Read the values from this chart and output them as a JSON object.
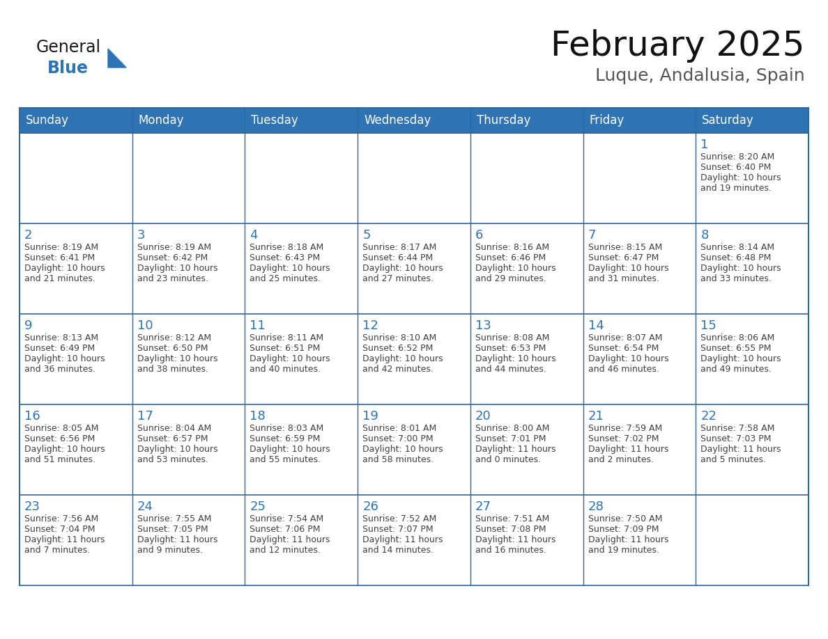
{
  "title": "February 2025",
  "subtitle": "Luque, Andalusia, Spain",
  "header_color": "#2E74B5",
  "header_text_color": "#FFFFFF",
  "cell_border_color": "#336699",
  "day_number_color": "#2E74B5",
  "info_text_color": "#404040",
  "background_color": "#FFFFFF",
  "days_of_week": [
    "Sunday",
    "Monday",
    "Tuesday",
    "Wednesday",
    "Thursday",
    "Friday",
    "Saturday"
  ],
  "calendar_data": [
    [
      null,
      null,
      null,
      null,
      null,
      null,
      {
        "day": 1,
        "sunrise": "8:20 AM",
        "sunset": "6:40 PM",
        "daylight_line1": "Daylight: 10 hours",
        "daylight_line2": "and 19 minutes."
      }
    ],
    [
      {
        "day": 2,
        "sunrise": "8:19 AM",
        "sunset": "6:41 PM",
        "daylight_line1": "Daylight: 10 hours",
        "daylight_line2": "and 21 minutes."
      },
      {
        "day": 3,
        "sunrise": "8:19 AM",
        "sunset": "6:42 PM",
        "daylight_line1": "Daylight: 10 hours",
        "daylight_line2": "and 23 minutes."
      },
      {
        "day": 4,
        "sunrise": "8:18 AM",
        "sunset": "6:43 PM",
        "daylight_line1": "Daylight: 10 hours",
        "daylight_line2": "and 25 minutes."
      },
      {
        "day": 5,
        "sunrise": "8:17 AM",
        "sunset": "6:44 PM",
        "daylight_line1": "Daylight: 10 hours",
        "daylight_line2": "and 27 minutes."
      },
      {
        "day": 6,
        "sunrise": "8:16 AM",
        "sunset": "6:46 PM",
        "daylight_line1": "Daylight: 10 hours",
        "daylight_line2": "and 29 minutes."
      },
      {
        "day": 7,
        "sunrise": "8:15 AM",
        "sunset": "6:47 PM",
        "daylight_line1": "Daylight: 10 hours",
        "daylight_line2": "and 31 minutes."
      },
      {
        "day": 8,
        "sunrise": "8:14 AM",
        "sunset": "6:48 PM",
        "daylight_line1": "Daylight: 10 hours",
        "daylight_line2": "and 33 minutes."
      }
    ],
    [
      {
        "day": 9,
        "sunrise": "8:13 AM",
        "sunset": "6:49 PM",
        "daylight_line1": "Daylight: 10 hours",
        "daylight_line2": "and 36 minutes."
      },
      {
        "day": 10,
        "sunrise": "8:12 AM",
        "sunset": "6:50 PM",
        "daylight_line1": "Daylight: 10 hours",
        "daylight_line2": "and 38 minutes."
      },
      {
        "day": 11,
        "sunrise": "8:11 AM",
        "sunset": "6:51 PM",
        "daylight_line1": "Daylight: 10 hours",
        "daylight_line2": "and 40 minutes."
      },
      {
        "day": 12,
        "sunrise": "8:10 AM",
        "sunset": "6:52 PM",
        "daylight_line1": "Daylight: 10 hours",
        "daylight_line2": "and 42 minutes."
      },
      {
        "day": 13,
        "sunrise": "8:08 AM",
        "sunset": "6:53 PM",
        "daylight_line1": "Daylight: 10 hours",
        "daylight_line2": "and 44 minutes."
      },
      {
        "day": 14,
        "sunrise": "8:07 AM",
        "sunset": "6:54 PM",
        "daylight_line1": "Daylight: 10 hours",
        "daylight_line2": "and 46 minutes."
      },
      {
        "day": 15,
        "sunrise": "8:06 AM",
        "sunset": "6:55 PM",
        "daylight_line1": "Daylight: 10 hours",
        "daylight_line2": "and 49 minutes."
      }
    ],
    [
      {
        "day": 16,
        "sunrise": "8:05 AM",
        "sunset": "6:56 PM",
        "daylight_line1": "Daylight: 10 hours",
        "daylight_line2": "and 51 minutes."
      },
      {
        "day": 17,
        "sunrise": "8:04 AM",
        "sunset": "6:57 PM",
        "daylight_line1": "Daylight: 10 hours",
        "daylight_line2": "and 53 minutes."
      },
      {
        "day": 18,
        "sunrise": "8:03 AM",
        "sunset": "6:59 PM",
        "daylight_line1": "Daylight: 10 hours",
        "daylight_line2": "and 55 minutes."
      },
      {
        "day": 19,
        "sunrise": "8:01 AM",
        "sunset": "7:00 PM",
        "daylight_line1": "Daylight: 10 hours",
        "daylight_line2": "and 58 minutes."
      },
      {
        "day": 20,
        "sunrise": "8:00 AM",
        "sunset": "7:01 PM",
        "daylight_line1": "Daylight: 11 hours",
        "daylight_line2": "and 0 minutes."
      },
      {
        "day": 21,
        "sunrise": "7:59 AM",
        "sunset": "7:02 PM",
        "daylight_line1": "Daylight: 11 hours",
        "daylight_line2": "and 2 minutes."
      },
      {
        "day": 22,
        "sunrise": "7:58 AM",
        "sunset": "7:03 PM",
        "daylight_line1": "Daylight: 11 hours",
        "daylight_line2": "and 5 minutes."
      }
    ],
    [
      {
        "day": 23,
        "sunrise": "7:56 AM",
        "sunset": "7:04 PM",
        "daylight_line1": "Daylight: 11 hours",
        "daylight_line2": "and 7 minutes."
      },
      {
        "day": 24,
        "sunrise": "7:55 AM",
        "sunset": "7:05 PM",
        "daylight_line1": "Daylight: 11 hours",
        "daylight_line2": "and 9 minutes."
      },
      {
        "day": 25,
        "sunrise": "7:54 AM",
        "sunset": "7:06 PM",
        "daylight_line1": "Daylight: 11 hours",
        "daylight_line2": "and 12 minutes."
      },
      {
        "day": 26,
        "sunrise": "7:52 AM",
        "sunset": "7:07 PM",
        "daylight_line1": "Daylight: 11 hours",
        "daylight_line2": "and 14 minutes."
      },
      {
        "day": 27,
        "sunrise": "7:51 AM",
        "sunset": "7:08 PM",
        "daylight_line1": "Daylight: 11 hours",
        "daylight_line2": "and 16 minutes."
      },
      {
        "day": 28,
        "sunrise": "7:50 AM",
        "sunset": "7:09 PM",
        "daylight_line1": "Daylight: 11 hours",
        "daylight_line2": "and 19 minutes."
      },
      null
    ]
  ],
  "logo_general_color": "#1a1a1a",
  "logo_blue_color": "#2E74B5",
  "title_fontsize": 36,
  "subtitle_fontsize": 18,
  "header_fontsize": 12,
  "day_number_fontsize": 13,
  "info_fontsize": 9
}
